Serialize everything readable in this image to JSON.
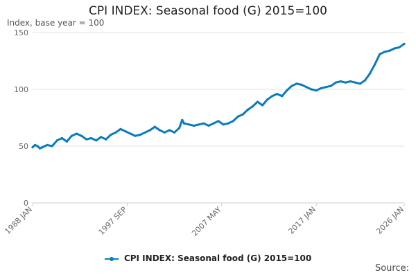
{
  "colors": {
    "series": "#0a7bbd",
    "grid": "#e3e3e3",
    "axis": "#cfcfcf",
    "text": "#666666"
  },
  "chart_data": {
    "type": "line",
    "title": "CPI INDEX: Seasonal food (G) 2015=100",
    "subtitle": "Index, base year = 100",
    "xlabel": "",
    "ylabel": "Index, base year = 100",
    "xlim": [
      1988.0,
      2026.0
    ],
    "ylim": [
      0,
      150
    ],
    "y_ticks": [
      0,
      50,
      100,
      150
    ],
    "x_ticks": [
      {
        "label": "1988 JAN",
        "value": 1988.0
      },
      {
        "label": "1997 SEP",
        "value": 1997.67
      },
      {
        "label": "2007 MAY",
        "value": 2007.33
      },
      {
        "label": "2017 JAN",
        "value": 2017.0
      },
      {
        "label": "2026 JAN",
        "value": 2026.0
      }
    ],
    "grid": true,
    "legend_position": "bottom-center",
    "series": [
      {
        "name": "CPI INDEX: Seasonal food (G) 2015=100",
        "x": [
          1988.0,
          1988.25,
          1988.5,
          1988.75,
          1989.0,
          1989.25,
          1989.5,
          1990.0,
          1990.5,
          1991.0,
          1991.5,
          1992.0,
          1992.5,
          1993.0,
          1993.5,
          1994.0,
          1994.5,
          1995.0,
          1995.5,
          1996.0,
          1996.5,
          1997.0,
          1997.5,
          1998.0,
          1998.5,
          1999.0,
          1999.5,
          2000.0,
          2000.5,
          2001.0,
          2001.5,
          2002.0,
          2002.5,
          2003.0,
          2003.3,
          2003.5,
          2004.0,
          2004.5,
          2005.0,
          2005.5,
          2006.0,
          2006.5,
          2007.0,
          2007.5,
          2008.0,
          2008.5,
          2009.0,
          2009.5,
          2010.0,
          2010.5,
          2011.0,
          2011.5,
          2012.0,
          2012.5,
          2013.0,
          2013.5,
          2014.0,
          2014.5,
          2015.0,
          2015.5,
          2016.0,
          2016.5,
          2017.0,
          2017.5,
          2018.0,
          2018.5,
          2019.0,
          2019.5,
          2020.0,
          2020.5,
          2021.0,
          2021.5,
          2022.0,
          2022.5,
          2023.0,
          2023.5,
          2024.0,
          2024.5,
          2025.0,
          2025.5,
          2026.0
        ],
        "values": [
          49,
          51,
          50,
          48,
          49,
          50,
          51,
          50,
          55,
          57,
          54,
          59,
          61,
          59,
          56,
          57,
          55,
          58,
          56,
          60,
          62,
          65,
          63,
          61,
          59,
          60,
          62,
          64,
          67,
          64,
          62,
          64,
          62,
          66,
          73,
          70,
          69,
          68,
          69,
          70,
          68,
          70,
          72,
          69,
          70,
          72,
          76,
          78,
          82,
          85,
          89,
          86,
          91,
          94,
          96,
          94,
          99,
          103,
          105,
          104,
          102,
          100,
          99,
          101,
          102,
          103,
          106,
          107,
          106,
          107,
          106,
          105,
          108,
          114,
          122,
          131,
          133,
          134,
          136,
          137,
          140
        ]
      }
    ]
  },
  "footer": {
    "source_label": "Source:"
  }
}
